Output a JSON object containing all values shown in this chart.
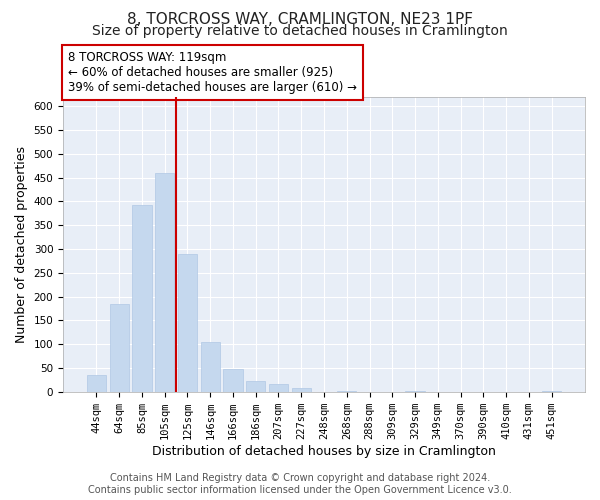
{
  "title": "8, TORCROSS WAY, CRAMLINGTON, NE23 1PF",
  "subtitle": "Size of property relative to detached houses in Cramlington",
  "xlabel": "Distribution of detached houses by size in Cramlington",
  "ylabel": "Number of detached properties",
  "bar_labels": [
    "44sqm",
    "64sqm",
    "85sqm",
    "105sqm",
    "125sqm",
    "146sqm",
    "166sqm",
    "186sqm",
    "207sqm",
    "227sqm",
    "248sqm",
    "268sqm",
    "288sqm",
    "309sqm",
    "329sqm",
    "349sqm",
    "370sqm",
    "390sqm",
    "410sqm",
    "431sqm",
    "451sqm"
  ],
  "bar_values": [
    35,
    185,
    393,
    460,
    290,
    105,
    48,
    22,
    16,
    8,
    0,
    2,
    0,
    0,
    1,
    0,
    0,
    0,
    0,
    0,
    1
  ],
  "bar_color": "#c5d8ee",
  "bar_edge_color": "#b0c8e4",
  "vline_color": "#cc0000",
  "annotation_title": "8 TORCROSS WAY: 119sqm",
  "annotation_line1": "← 60% of detached houses are smaller (925)",
  "annotation_line2": "39% of semi-detached houses are larger (610) →",
  "annotation_box_facecolor": "#ffffff",
  "annotation_box_edgecolor": "#cc0000",
  "ylim": [
    0,
    620
  ],
  "yticks": [
    0,
    50,
    100,
    150,
    200,
    250,
    300,
    350,
    400,
    450,
    500,
    550,
    600
  ],
  "footer_line1": "Contains HM Land Registry data © Crown copyright and database right 2024.",
  "footer_line2": "Contains public sector information licensed under the Open Government Licence v3.0.",
  "fig_bg_color": "#ffffff",
  "plot_bg_color": "#e8eef7",
  "grid_color": "#ffffff",
  "spine_color": "#aaaaaa",
  "title_fontsize": 11,
  "subtitle_fontsize": 10,
  "axis_label_fontsize": 9,
  "tick_fontsize": 7.5,
  "annotation_fontsize": 8.5,
  "footer_fontsize": 7
}
